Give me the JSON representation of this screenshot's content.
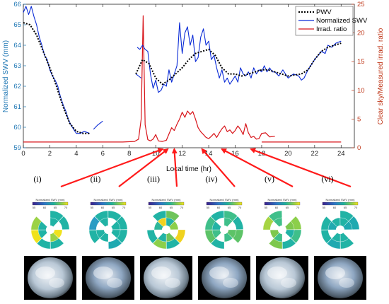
{
  "chart_data": {
    "type": "line",
    "xlabel": "Local time (hr)",
    "ylabel_left": "Normalized SWV (mm)",
    "ylabel_right": "Clear sky/Measured irrad. ratio",
    "xlim": [
      0,
      25
    ],
    "ylim_left": [
      59,
      66
    ],
    "ylim_right": [
      0,
      25
    ],
    "x_ticks": [
      0,
      2,
      4,
      6,
      8,
      10,
      12,
      14,
      16,
      18,
      20,
      22,
      24
    ],
    "y_left_ticks": [
      59,
      60,
      61,
      62,
      63,
      64,
      65,
      66
    ],
    "y_right_ticks": [
      0,
      5,
      10,
      15,
      20,
      25
    ],
    "legend_position": "top-right",
    "colors": {
      "pwv": "#000000",
      "swv": "#0a2bd6",
      "irrad": "#d8141a",
      "left_axis": "#1f77b4",
      "right_axis": "#c0391b"
    },
    "series": [
      {
        "name": "PWV",
        "axis": "left",
        "style": "dotted",
        "segments": [
          [
            [
              0,
              65.1
            ],
            [
              0.5,
              65.0
            ],
            [
              1,
              64.5
            ],
            [
              1.5,
              63.7
            ],
            [
              2,
              62.9
            ],
            [
              2.5,
              62.0
            ],
            [
              3,
              61.0
            ],
            [
              3.5,
              60.2
            ],
            [
              4,
              59.8
            ],
            [
              4.5,
              59.7
            ],
            [
              5,
              59.7
            ]
          ],
          [
            [
              8.5,
              62.6
            ],
            [
              9,
              63.3
            ],
            [
              9.5,
              63.1
            ],
            [
              10,
              62.4
            ],
            [
              10.5,
              62.1
            ],
            [
              11,
              62.3
            ],
            [
              11.5,
              62.6
            ],
            [
              12,
              62.9
            ],
            [
              12.5,
              63.3
            ],
            [
              13,
              63.6
            ],
            [
              13.5,
              63.7
            ],
            [
              14,
              63.8
            ],
            [
              14.5,
              63.5
            ],
            [
              15,
              62.9
            ],
            [
              15.5,
              62.6
            ],
            [
              16,
              62.6
            ],
            [
              16.5,
              62.5
            ],
            [
              17,
              62.6
            ],
            [
              17.5,
              62.7
            ],
            [
              18,
              62.8
            ],
            [
              18.5,
              62.8
            ],
            [
              19,
              62.7
            ],
            [
              19.5,
              62.6
            ],
            [
              20,
              62.5
            ],
            [
              21,
              62.6
            ],
            [
              21.5,
              62.8
            ],
            [
              22,
              63.3
            ],
            [
              22.5,
              63.7
            ],
            [
              23,
              63.9
            ],
            [
              23.5,
              64.0
            ],
            [
              24,
              64.1
            ]
          ]
        ]
      },
      {
        "name": "Normalized SWV",
        "axis": "left",
        "style": "solid",
        "segments": [
          [
            [
              0,
              65.6
            ],
            [
              0.2,
              65.9
            ],
            [
              0.4,
              65.5
            ],
            [
              0.6,
              65.9
            ],
            [
              0.8,
              65.4
            ],
            [
              1,
              65.0
            ],
            [
              1.2,
              64.4
            ],
            [
              1.4,
              64.0
            ],
            [
              1.6,
              63.5
            ],
            [
              1.8,
              63.3
            ],
            [
              2,
              62.8
            ],
            [
              2.2,
              62.5
            ],
            [
              2.4,
              62.3
            ],
            [
              2.6,
              62.0
            ],
            [
              2.8,
              61.5
            ],
            [
              3,
              61.1
            ],
            [
              3.2,
              60.8
            ],
            [
              3.4,
              60.4
            ],
            [
              3.6,
              60.1
            ],
            [
              3.8,
              59.9
            ],
            [
              4,
              59.7
            ],
            [
              4.3,
              59.7
            ],
            [
              4.6,
              59.8
            ],
            [
              5,
              59.7
            ]
          ],
          [
            [
              5.3,
              59.9
            ],
            [
              5.6,
              60.1
            ],
            [
              5.8,
              60.2
            ],
            [
              6,
              60.3
            ]
          ],
          [
            [
              8.5,
              62.6
            ],
            [
              8.7,
              62.5
            ],
            [
              8.9,
              62.4
            ]
          ],
          [
            [
              8.6,
              63.9
            ],
            [
              8.8,
              63.8
            ],
            [
              9,
              64.0
            ],
            [
              9.2,
              63.8
            ],
            [
              9.4,
              63.7
            ],
            [
              9.6,
              62.6
            ],
            [
              9.8,
              61.9
            ],
            [
              10,
              62.3
            ],
            [
              10.2,
              61.7
            ],
            [
              10.4,
              61.8
            ],
            [
              10.6,
              62.1
            ],
            [
              10.8,
              62.0
            ],
            [
              11,
              62.8
            ],
            [
              11.2,
              62.2
            ],
            [
              11.4,
              62.6
            ],
            [
              11.6,
              63.0
            ],
            [
              11.8,
              65.1
            ],
            [
              12,
              63.6
            ],
            [
              12.2,
              64.6
            ],
            [
              12.4,
              64.9
            ],
            [
              12.6,
              64.0
            ],
            [
              12.8,
              64.5
            ],
            [
              13,
              63.2
            ],
            [
              13.2,
              63.4
            ],
            [
              13.4,
              64.4
            ],
            [
              13.6,
              64.8
            ],
            [
              13.8,
              64.0
            ],
            [
              14,
              64.2
            ],
            [
              14.2,
              63.3
            ],
            [
              14.4,
              63.5
            ],
            [
              14.6,
              62.9
            ],
            [
              14.8,
              62.4
            ],
            [
              15,
              62.8
            ],
            [
              15.2,
              62.2
            ],
            [
              15.4,
              62.4
            ],
            [
              15.6,
              62.1
            ],
            [
              15.8,
              62.3
            ],
            [
              16,
              62.5
            ],
            [
              16.2,
              62.2
            ],
            [
              16.4,
              62.9
            ],
            [
              16.6,
              62.6
            ],
            [
              16.8,
              62.5
            ],
            [
              17,
              62.7
            ],
            [
              17.2,
              62.4
            ],
            [
              17.4,
              62.9
            ],
            [
              17.6,
              62.6
            ],
            [
              17.8,
              62.8
            ],
            [
              18,
              62.7
            ],
            [
              18.2,
              63.0
            ],
            [
              18.4,
              62.7
            ],
            [
              18.6,
              62.9
            ],
            [
              18.8,
              62.7
            ],
            [
              19,
              62.7
            ],
            [
              19.3,
              62.5
            ],
            [
              19.6,
              62.8
            ],
            [
              20,
              62.4
            ],
            [
              20.4,
              62.6
            ],
            [
              20.8,
              62.5
            ],
            [
              21,
              62.3
            ],
            [
              21.2,
              62.4
            ],
            [
              21.5,
              62.8
            ],
            [
              22,
              63.3
            ],
            [
              22.5,
              63.7
            ],
            [
              22.8,
              63.6
            ],
            [
              23,
              64.0
            ],
            [
              23.3,
              63.9
            ],
            [
              23.6,
              64.1
            ],
            [
              24,
              64.2
            ]
          ]
        ]
      },
      {
        "name": "Irrad. ratio",
        "axis": "right",
        "style": "solid",
        "segments": [
          [
            [
              0,
              1
            ],
            [
              7.5,
              1
            ],
            [
              8.4,
              1.1
            ],
            [
              8.7,
              1.5
            ],
            [
              8.9,
              5
            ],
            [
              9.05,
              23
            ],
            [
              9.2,
              4
            ],
            [
              9.4,
              1.4
            ],
            [
              9.6,
              1.2
            ],
            [
              9.8,
              1.5
            ],
            [
              10,
              2.3
            ],
            [
              10.2,
              1.2
            ],
            [
              10.5,
              1.1
            ],
            [
              10.8,
              1.3
            ],
            [
              11,
              2.4
            ],
            [
              11.2,
              3.5
            ],
            [
              11.4,
              3.0
            ],
            [
              11.6,
              4.1
            ],
            [
              11.8,
              5.0
            ],
            [
              12,
              6.2
            ],
            [
              12.2,
              5.3
            ],
            [
              12.4,
              6.4
            ],
            [
              12.6,
              5.8
            ],
            [
              12.8,
              6.3
            ],
            [
              13,
              5.0
            ],
            [
              13.2,
              3.5
            ],
            [
              13.4,
              2.8
            ],
            [
              13.6,
              2.3
            ],
            [
              13.8,
              1.8
            ],
            [
              14,
              1.6
            ],
            [
              14.2,
              2.0
            ],
            [
              14.4,
              2.5
            ],
            [
              14.6,
              1.8
            ],
            [
              14.8,
              2.6
            ],
            [
              15,
              3.3
            ],
            [
              15.2,
              3.8
            ],
            [
              15.4,
              2.8
            ],
            [
              15.6,
              3.1
            ],
            [
              15.8,
              2.5
            ],
            [
              16,
              3.0
            ],
            [
              16.2,
              3.8
            ],
            [
              16.4,
              3.2
            ],
            [
              16.6,
              2.3
            ],
            [
              16.8,
              4.2
            ],
            [
              17,
              2.6
            ],
            [
              17.2,
              1.8
            ],
            [
              17.4,
              2.0
            ],
            [
              17.6,
              1.5
            ],
            [
              17.8,
              1.6
            ],
            [
              18,
              2.5
            ],
            [
              18.3,
              2.6
            ],
            [
              18.6,
              1.9
            ],
            [
              19,
              2.0
            ]
          ],
          [
            [
              18,
              1
            ],
            [
              24,
              1
            ]
          ]
        ]
      }
    ],
    "annotations": [
      {
        "label": "(i)",
        "time": 10.5
      },
      {
        "label": "(ii)",
        "time": 10.9
      },
      {
        "label": "(iii)",
        "time": 11.4
      },
      {
        "label": "(iv)",
        "time": 13.5
      },
      {
        "label": "(v)",
        "time": 15
      },
      {
        "label": "(vi)",
        "time": 17.2
      }
    ],
    "insets": {
      "colorbar_title": "Normalized SWV (mm)",
      "colorbar_ticks": [
        "55",
        "60",
        "65",
        "70"
      ],
      "count": 6
    }
  }
}
